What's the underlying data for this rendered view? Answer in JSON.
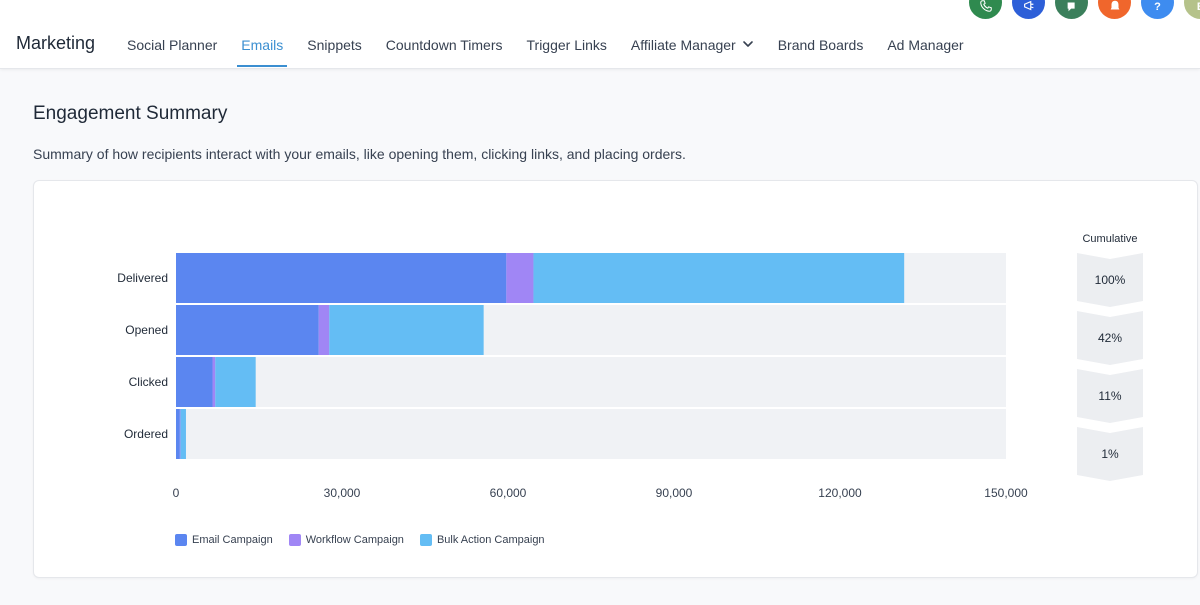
{
  "app": {
    "brand": "Marketing",
    "tabs": [
      {
        "label": "Social Planner",
        "active": false
      },
      {
        "label": "Emails",
        "active": true
      },
      {
        "label": "Snippets",
        "active": false
      },
      {
        "label": "Countdown Timers",
        "active": false
      },
      {
        "label": "Trigger Links",
        "active": false
      },
      {
        "label": "Affiliate Manager",
        "active": false,
        "dropdown": true
      },
      {
        "label": "Brand Boards",
        "active": false
      },
      {
        "label": "Ad Manager",
        "active": false
      }
    ],
    "header_actions": [
      {
        "name": "phone-icon",
        "color": "#2f8a4f"
      },
      {
        "name": "megaphone-icon",
        "color": "#2d5fd8"
      },
      {
        "name": "announcement-icon",
        "color": "#3b7f5b"
      },
      {
        "name": "bell-icon",
        "color": "#f0662c"
      },
      {
        "name": "help-icon",
        "color": "#3e8cf0",
        "text": "?"
      },
      {
        "name": "avatar",
        "color": "#b5c28a",
        "text": "E"
      }
    ]
  },
  "page": {
    "title": "Engagement Summary",
    "description": "Summary of how recipients interact with your emails, like opening them, clicking links, and placing orders."
  },
  "chart_data": {
    "type": "bar",
    "orientation": "horizontal",
    "stacked": true,
    "categories": [
      "Delivered",
      "Opened",
      "Clicked",
      "Ordered"
    ],
    "series": [
      {
        "name": "Email Campaign",
        "color": "#5b86f0",
        "values": [
          59700,
          25800,
          6600,
          700
        ]
      },
      {
        "name": "Workflow Campaign",
        "color": "#a086f5",
        "values": [
          4900,
          1900,
          500,
          100
        ]
      },
      {
        "name": "Bulk Action Campaign",
        "color": "#64bdf4",
        "values": [
          67000,
          27900,
          7300,
          1000
        ]
      }
    ],
    "xlim": [
      0,
      150000
    ],
    "xticks": [
      0,
      30000,
      60000,
      90000,
      120000,
      150000
    ],
    "xtick_labels": [
      "0",
      "30,000",
      "60,000",
      "90,000",
      "120,000",
      "150,000"
    ],
    "track_color": "#f0f2f5",
    "legend_position": "bottom-left",
    "cumulative": {
      "title": "Cumulative",
      "values": [
        "100%",
        "42%",
        "11%",
        "1%"
      ]
    }
  }
}
